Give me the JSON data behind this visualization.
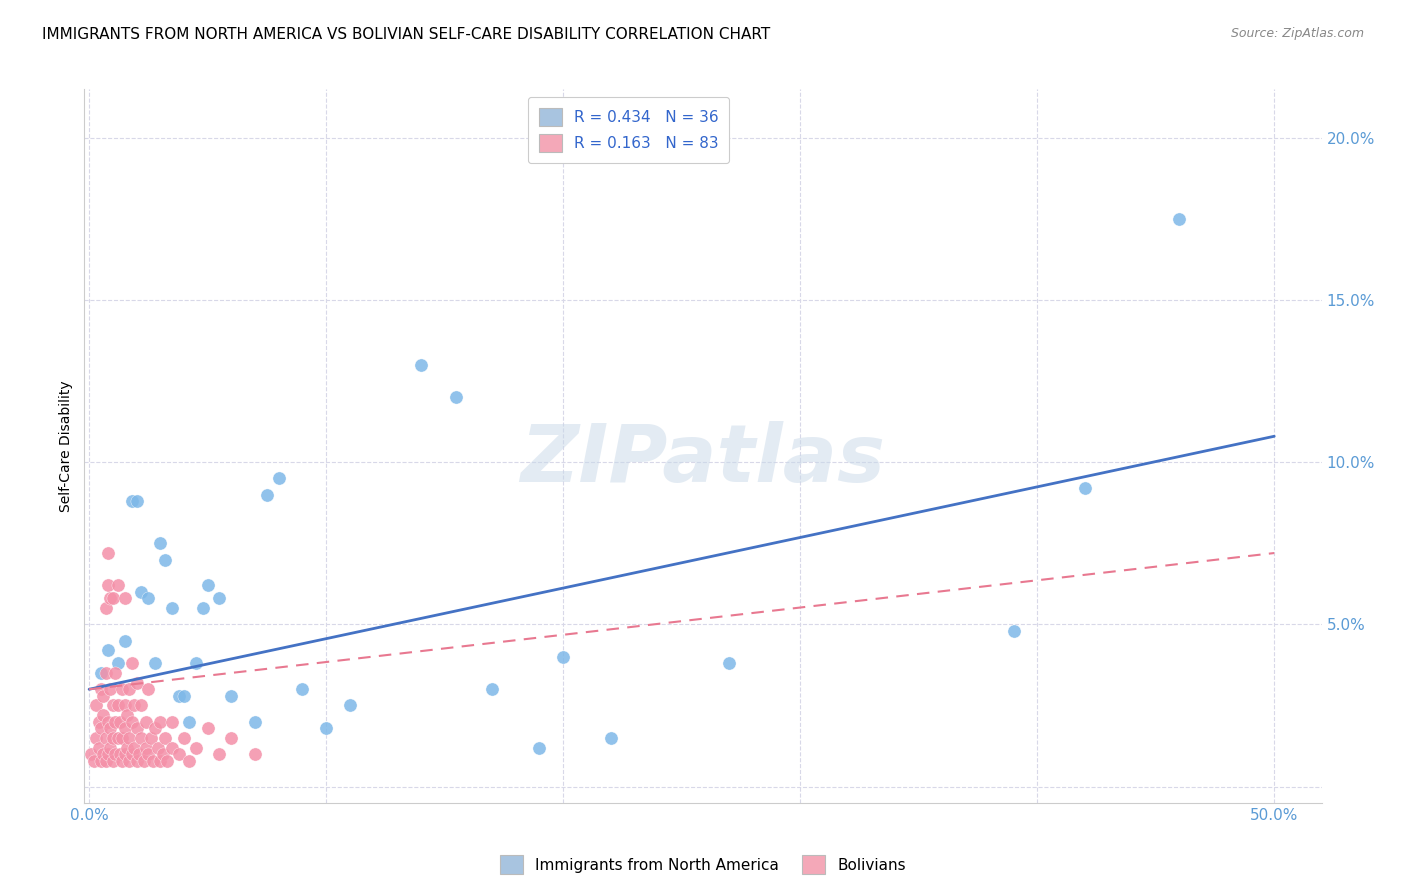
{
  "title": "IMMIGRANTS FROM NORTH AMERICA VS BOLIVIAN SELF-CARE DISABILITY CORRELATION CHART",
  "source": "Source: ZipAtlas.com",
  "ylabel": "Self-Care Disability",
  "ytick_vals": [
    0.0,
    0.05,
    0.1,
    0.15,
    0.2
  ],
  "ytick_labels": [
    "",
    "5.0%",
    "10.0%",
    "15.0%",
    "20.0%"
  ],
  "xtick_vals": [
    0.0,
    0.5
  ],
  "xtick_labels": [
    "0.0%",
    "50.0%"
  ],
  "xlim": [
    -0.002,
    0.52
  ],
  "ylim": [
    -0.005,
    0.215
  ],
  "legend1_label": "R = 0.434   N = 36",
  "legend2_label": "R = 0.163   N = 83",
  "legend_color1": "#a8c4e0",
  "legend_color2": "#f4a8b8",
  "watermark": "ZIPatlas",
  "blue_scatter": [
    [
      0.005,
      0.035
    ],
    [
      0.008,
      0.042
    ],
    [
      0.012,
      0.038
    ],
    [
      0.015,
      0.045
    ],
    [
      0.018,
      0.088
    ],
    [
      0.02,
      0.088
    ],
    [
      0.022,
      0.06
    ],
    [
      0.025,
      0.058
    ],
    [
      0.028,
      0.038
    ],
    [
      0.03,
      0.075
    ],
    [
      0.032,
      0.07
    ],
    [
      0.035,
      0.055
    ],
    [
      0.038,
      0.028
    ],
    [
      0.04,
      0.028
    ],
    [
      0.042,
      0.02
    ],
    [
      0.045,
      0.038
    ],
    [
      0.048,
      0.055
    ],
    [
      0.05,
      0.062
    ],
    [
      0.055,
      0.058
    ],
    [
      0.06,
      0.028
    ],
    [
      0.07,
      0.02
    ],
    [
      0.075,
      0.09
    ],
    [
      0.08,
      0.095
    ],
    [
      0.09,
      0.03
    ],
    [
      0.1,
      0.018
    ],
    [
      0.11,
      0.025
    ],
    [
      0.14,
      0.13
    ],
    [
      0.155,
      0.12
    ],
    [
      0.17,
      0.03
    ],
    [
      0.19,
      0.012
    ],
    [
      0.2,
      0.04
    ],
    [
      0.22,
      0.015
    ],
    [
      0.27,
      0.038
    ],
    [
      0.39,
      0.048
    ],
    [
      0.42,
      0.092
    ],
    [
      0.46,
      0.175
    ]
  ],
  "pink_scatter": [
    [
      0.001,
      0.01
    ],
    [
      0.002,
      0.008
    ],
    [
      0.003,
      0.015
    ],
    [
      0.003,
      0.025
    ],
    [
      0.004,
      0.012
    ],
    [
      0.004,
      0.02
    ],
    [
      0.005,
      0.008
    ],
    [
      0.005,
      0.018
    ],
    [
      0.005,
      0.03
    ],
    [
      0.006,
      0.01
    ],
    [
      0.006,
      0.022
    ],
    [
      0.006,
      0.028
    ],
    [
      0.007,
      0.008
    ],
    [
      0.007,
      0.015
    ],
    [
      0.007,
      0.035
    ],
    [
      0.007,
      0.055
    ],
    [
      0.008,
      0.01
    ],
    [
      0.008,
      0.02
    ],
    [
      0.008,
      0.062
    ],
    [
      0.008,
      0.072
    ],
    [
      0.009,
      0.012
    ],
    [
      0.009,
      0.018
    ],
    [
      0.009,
      0.03
    ],
    [
      0.009,
      0.058
    ],
    [
      0.01,
      0.008
    ],
    [
      0.01,
      0.015
    ],
    [
      0.01,
      0.025
    ],
    [
      0.01,
      0.058
    ],
    [
      0.011,
      0.01
    ],
    [
      0.011,
      0.02
    ],
    [
      0.011,
      0.035
    ],
    [
      0.012,
      0.062
    ],
    [
      0.012,
      0.015
    ],
    [
      0.012,
      0.025
    ],
    [
      0.013,
      0.01
    ],
    [
      0.013,
      0.02
    ],
    [
      0.014,
      0.008
    ],
    [
      0.014,
      0.015
    ],
    [
      0.014,
      0.03
    ],
    [
      0.015,
      0.01
    ],
    [
      0.015,
      0.018
    ],
    [
      0.015,
      0.025
    ],
    [
      0.015,
      0.058
    ],
    [
      0.016,
      0.012
    ],
    [
      0.016,
      0.022
    ],
    [
      0.017,
      0.008
    ],
    [
      0.017,
      0.015
    ],
    [
      0.017,
      0.03
    ],
    [
      0.018,
      0.01
    ],
    [
      0.018,
      0.02
    ],
    [
      0.018,
      0.038
    ],
    [
      0.019,
      0.012
    ],
    [
      0.019,
      0.025
    ],
    [
      0.02,
      0.008
    ],
    [
      0.02,
      0.018
    ],
    [
      0.02,
      0.032
    ],
    [
      0.021,
      0.01
    ],
    [
      0.022,
      0.015
    ],
    [
      0.022,
      0.025
    ],
    [
      0.023,
      0.008
    ],
    [
      0.024,
      0.012
    ],
    [
      0.024,
      0.02
    ],
    [
      0.025,
      0.01
    ],
    [
      0.025,
      0.03
    ],
    [
      0.026,
      0.015
    ],
    [
      0.027,
      0.008
    ],
    [
      0.028,
      0.018
    ],
    [
      0.029,
      0.012
    ],
    [
      0.03,
      0.008
    ],
    [
      0.03,
      0.02
    ],
    [
      0.031,
      0.01
    ],
    [
      0.032,
      0.015
    ],
    [
      0.033,
      0.008
    ],
    [
      0.035,
      0.012
    ],
    [
      0.035,
      0.02
    ],
    [
      0.038,
      0.01
    ],
    [
      0.04,
      0.015
    ],
    [
      0.042,
      0.008
    ],
    [
      0.045,
      0.012
    ],
    [
      0.05,
      0.018
    ],
    [
      0.055,
      0.01
    ],
    [
      0.06,
      0.015
    ],
    [
      0.07,
      0.01
    ]
  ],
  "blue_line_x": [
    0.0,
    0.5
  ],
  "blue_line_y": [
    0.03,
    0.108
  ],
  "pink_line_x": [
    0.0,
    0.5
  ],
  "pink_line_y": [
    0.03,
    0.072
  ],
  "scatter_color_blue": "#7eb8e8",
  "scatter_color_pink": "#f490a8",
  "line_color_blue": "#4472c4",
  "line_color_pink": "#e87890",
  "grid_color": "#d8d8e8",
  "background_color": "#ffffff",
  "title_fontsize": 11,
  "source_fontsize": 9,
  "tick_label_color": "#5b9bd5"
}
